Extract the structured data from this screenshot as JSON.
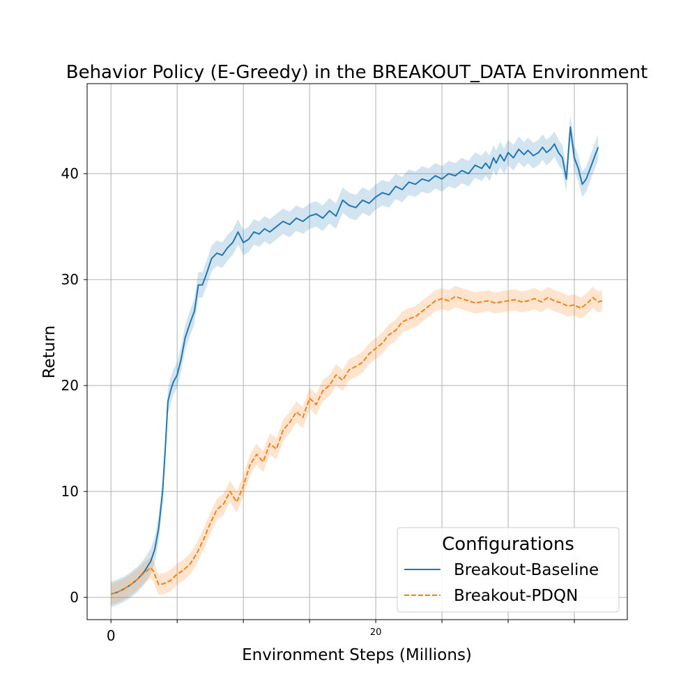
{
  "chart_data": {
    "type": "line",
    "title": "Behavior Policy (E-Greedy) in the BREAKOUT_DATA Environment",
    "xlabel": "Environment Steps (Millions)",
    "ylabel": "Return",
    "xlim": [
      -1.8,
      39
    ],
    "ylim": [
      -2.1,
      48.5
    ],
    "grid": true,
    "x_ticks": [
      {
        "value": 0,
        "label": "0"
      },
      {
        "value": 5,
        "label": ""
      },
      {
        "value": 10,
        "label": ""
      },
      {
        "value": 15,
        "label": ""
      },
      {
        "value": 20,
        "label": "20"
      },
      {
        "value": 25,
        "label": ""
      },
      {
        "value": 30,
        "label": ""
      },
      {
        "value": 35,
        "label": ""
      }
    ],
    "y_ticks": [
      {
        "value": 0,
        "label": "0"
      },
      {
        "value": 10,
        "label": "10"
      },
      {
        "value": 20,
        "label": "20"
      },
      {
        "value": 30,
        "label": "30"
      },
      {
        "value": 40,
        "label": "40"
      }
    ],
    "legend": {
      "title": "Configurations",
      "position": "lower-right"
    },
    "series": [
      {
        "name": "Breakout-Baseline",
        "color": "#1f77b4",
        "style": "solid",
        "x": [
          0,
          0.5,
          1,
          1.5,
          2,
          2.5,
          3,
          3.3,
          3.6,
          3.9,
          4.1,
          4.3,
          4.5,
          4.7,
          5.0,
          5.3,
          5.6,
          6.0,
          6.3,
          6.6,
          6.9,
          7.2,
          7.6,
          8.0,
          8.4,
          8.8,
          9.2,
          9.6,
          10.0,
          10.4,
          10.8,
          11.2,
          11.6,
          12.0,
          12.5,
          13.0,
          13.5,
          14.0,
          14.5,
          15.0,
          15.5,
          16.0,
          16.5,
          17.0,
          17.5,
          18.0,
          18.5,
          19.0,
          19.5,
          20.0,
          20.5,
          21.0,
          21.5,
          22.0,
          22.5,
          23.0,
          23.5,
          24.0,
          24.5,
          25.0,
          25.5,
          26.0,
          26.5,
          27.0,
          27.5,
          28.0,
          28.3,
          28.6,
          28.9,
          29.1,
          29.4,
          29.7,
          30.0,
          30.4,
          30.8,
          31.2,
          31.5,
          31.9,
          32.3,
          32.6,
          32.9,
          33.2,
          33.5,
          33.8,
          34.1,
          34.4,
          34.7,
          35.0,
          35.3,
          35.6,
          35.9,
          36.2,
          36.5,
          36.8
        ],
        "y": [
          0.3,
          0.5,
          0.8,
          1.2,
          1.7,
          2.4,
          3.4,
          4.5,
          6.5,
          10.0,
          14.0,
          18.5,
          19.5,
          20.3,
          21.0,
          22.5,
          24.5,
          26.0,
          27.0,
          29.5,
          29.5,
          30.5,
          32.0,
          32.5,
          32.3,
          33.0,
          33.5,
          34.5,
          33.5,
          33.8,
          34.5,
          34.3,
          34.8,
          34.5,
          35.0,
          35.5,
          35.2,
          35.8,
          35.5,
          36.0,
          36.2,
          35.8,
          36.5,
          36.0,
          37.5,
          37.0,
          36.8,
          37.5,
          37.2,
          37.8,
          38.2,
          38.0,
          38.8,
          38.5,
          39.2,
          39.0,
          39.5,
          39.3,
          39.8,
          39.5,
          40.0,
          39.8,
          40.3,
          40.0,
          40.8,
          40.5,
          41.0,
          40.5,
          41.5,
          41.0,
          41.8,
          41.2,
          42.0,
          41.5,
          42.3,
          41.8,
          42.2,
          41.7,
          42.0,
          42.5,
          42.0,
          42.3,
          42.8,
          42.0,
          41.5,
          39.5,
          44.4,
          41.5,
          40.5,
          39.0,
          39.5,
          40.5,
          41.5,
          42.5
        ],
        "band": 1.2
      },
      {
        "name": "Breakout-PDQN",
        "color": "#ff7f0e",
        "style": "dashed",
        "x": [
          0,
          0.5,
          1,
          1.5,
          2,
          2.5,
          3,
          3.2,
          3.6,
          4.0,
          4.5,
          5.0,
          5.5,
          6.0,
          6.5,
          7.0,
          7.5,
          8.0,
          8.5,
          9.0,
          9.5,
          10.0,
          10.5,
          11.0,
          11.5,
          12.0,
          12.5,
          13.0,
          13.5,
          14.0,
          14.5,
          15.0,
          15.5,
          16.0,
          16.5,
          17.0,
          17.5,
          18.0,
          18.5,
          19.0,
          19.5,
          20.0,
          20.5,
          21.0,
          21.5,
          22.0,
          22.5,
          23.0,
          23.5,
          24.0,
          24.5,
          25.0,
          25.5,
          26.0,
          26.5,
          27.0,
          27.5,
          28.0,
          28.5,
          29.0,
          29.5,
          30.0,
          30.5,
          31.0,
          31.5,
          32.0,
          32.5,
          33.0,
          33.5,
          34.0,
          34.5,
          35.0,
          35.5,
          36.0,
          36.4,
          36.8,
          37.1
        ],
        "y": [
          0.3,
          0.5,
          0.8,
          1.2,
          1.7,
          2.3,
          2.8,
          2.5,
          1.2,
          1.3,
          1.6,
          2.2,
          2.6,
          3.2,
          4.2,
          5.5,
          7.0,
          8.3,
          8.8,
          10.0,
          9.0,
          10.5,
          12.5,
          13.5,
          12.8,
          14.5,
          14.0,
          15.8,
          16.5,
          17.5,
          17.0,
          18.8,
          18.2,
          19.5,
          20.0,
          21.0,
          20.5,
          21.5,
          21.8,
          22.2,
          23.0,
          23.5,
          24.0,
          24.8,
          25.2,
          26.0,
          26.3,
          26.5,
          27.0,
          27.5,
          28.0,
          28.2,
          28.0,
          28.4,
          28.2,
          28.0,
          27.8,
          27.9,
          28.0,
          27.8,
          27.9,
          28.0,
          28.1,
          27.9,
          28.0,
          28.2,
          27.9,
          28.3,
          28.0,
          27.8,
          27.5,
          27.6,
          27.3,
          27.8,
          28.3,
          27.9,
          28.0
        ],
        "band": 1.0
      }
    ]
  }
}
